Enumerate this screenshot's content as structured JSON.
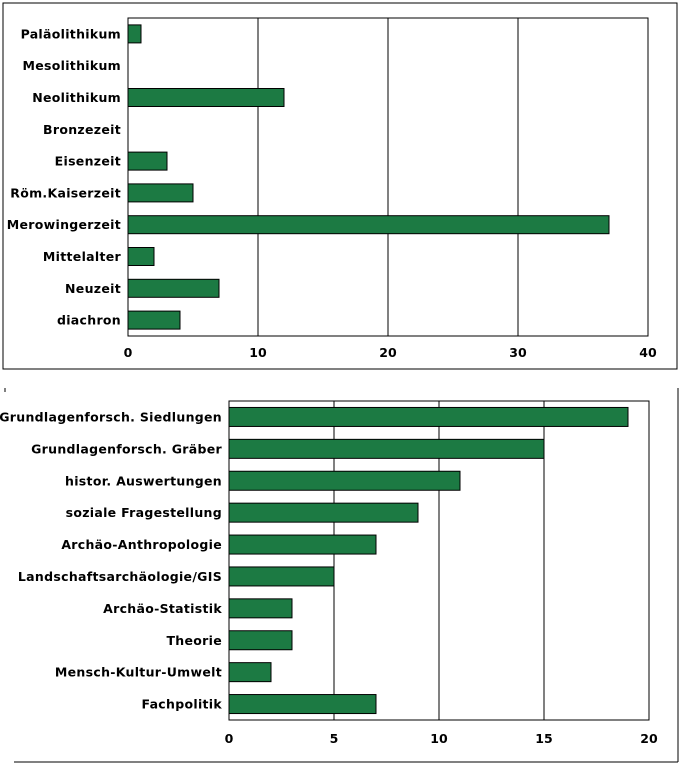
{
  "colors": {
    "bar": "#1c7a43",
    "bar_stroke": "#000000",
    "grid": "#000000",
    "frame": "#000000"
  },
  "chart_data": [
    {
      "type": "bar",
      "orientation": "horizontal",
      "categories": [
        "Paläolithikum",
        "Mesolithikum",
        "Neolithikum",
        "Bronzezeit",
        "Eisenzeit",
        "Röm.Kaiserzeit",
        "Merowingerzeit",
        "Mittelalter",
        "Neuzeit",
        "diachron"
      ],
      "values": [
        1,
        0,
        12,
        0,
        3,
        5,
        37,
        2,
        7,
        4
      ],
      "xlim": [
        0,
        40
      ],
      "xticks": [
        "0",
        "10",
        "20",
        "30",
        "40"
      ],
      "grid": "vertical"
    },
    {
      "type": "bar",
      "orientation": "horizontal",
      "categories": [
        "Grundlagenforsch. Siedlungen",
        "Grundlagenforsch. Gräber",
        "histor. Auswertungen",
        "soziale Fragestellung",
        "Archäo-Anthropologie",
        "Landschaftsarchäologie/GIS",
        "Archäo-Statistik",
        "Theorie",
        "Mensch-Kultur-Umwelt",
        "Fachpolitik"
      ],
      "values": [
        19,
        15,
        11,
        9,
        7,
        5,
        3,
        3,
        2,
        7
      ],
      "xlim": [
        0,
        20
      ],
      "xticks": [
        "0",
        "5",
        "10",
        "15",
        "20"
      ],
      "grid": "vertical"
    }
  ]
}
